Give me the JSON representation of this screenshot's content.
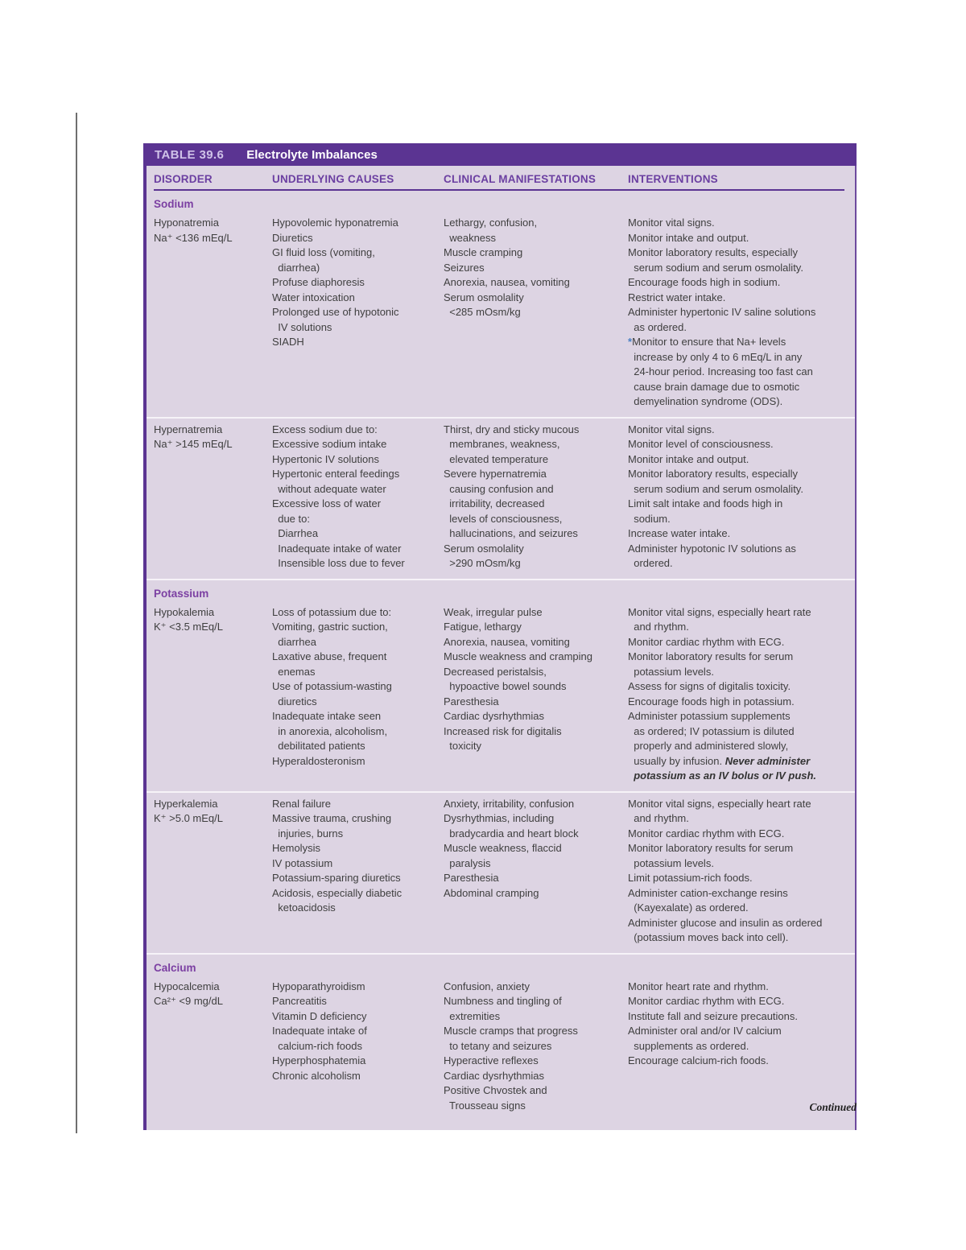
{
  "page": {
    "continued_label": "Continued"
  },
  "colors": {
    "title_bar_bg": "#5b3492",
    "table_body_bg": "#ddd4e3",
    "heading_purple": "#6b3fa1",
    "body_text": "#3f3f3f",
    "footnote_star_blue": "#4a80c4"
  },
  "table": {
    "title_label": "TABLE 39.6",
    "title_text": "Electrolyte Imbalances",
    "columns": [
      "DISORDER",
      "UNDERLYING CAUSES",
      "CLINICAL MANIFESTATIONS",
      "INTERVENTIONS"
    ],
    "sections": [
      {
        "key": "sodium",
        "name": "Sodium",
        "rows": [
          {
            "key": "hyponatremia",
            "disorder": [
              "Hyponatremia",
              "Na⁺ <136 mEq/L"
            ],
            "causes": [
              "Hypovolemic hyponatremia",
              "Diuretics",
              "GI fluid loss (vomiting,",
              "  diarrhea)",
              "Profuse diaphoresis",
              "Water intoxication",
              "Prolonged use of hypotonic",
              "  IV solutions",
              "SIADH"
            ],
            "manifestations": [
              "Lethargy, confusion,",
              "  weakness",
              "Muscle cramping",
              "Seizures",
              "Anorexia, nausea, vomiting",
              "Serum osmolality",
              "  <285 mOsm/kg"
            ],
            "interventions": [
              "Monitor vital signs.",
              "Monitor intake and output.",
              "Monitor laboratory results, especially",
              "  serum sodium and serum osmolality.",
              "Encourage foods high in sodium.",
              "Restrict water intake.",
              "Administer hypertonic IV saline solutions",
              "  as ordered.",
              {
                "star": true,
                "s": "Monitor to ensure that Na+ levels"
              },
              "  increase by only 4 to 6 mEq/L in any",
              "  24-hour period. Increasing too fast can",
              "  cause brain damage due to osmotic",
              "  demyelination syndrome (ODS)."
            ]
          },
          {
            "key": "hypernatremia",
            "disorder": [
              "Hypernatremia",
              "Na⁺ >145 mEq/L"
            ],
            "causes": [
              "Excess sodium due to:",
              "Excessive sodium intake",
              "Hypertonic IV solutions",
              "Hypertonic enteral feedings",
              "  without adequate water",
              "Excessive loss of water",
              "  due to:",
              "  Diarrhea",
              "  Inadequate intake of water",
              "  Insensible loss due to fever"
            ],
            "manifestations": [
              "Thirst, dry and sticky mucous",
              "  membranes, weakness,",
              "  elevated temperature",
              "Severe hypernatremia",
              "  causing confusion and",
              "  irritability, decreased",
              "  levels of consciousness,",
              "  hallucinations, and seizures",
              "Serum osmolality",
              "  >290 mOsm/kg"
            ],
            "interventions": [
              "Monitor vital signs.",
              "Monitor level of consciousness.",
              "Monitor intake and output.",
              "Monitor laboratory results, especially",
              "  serum sodium and serum osmolality.",
              "Limit salt intake and foods high in",
              "  sodium.",
              "Increase water intake.",
              "Administer hypotonic IV solutions as",
              "  ordered."
            ]
          }
        ]
      },
      {
        "key": "potassium",
        "name": "Potassium",
        "rows": [
          {
            "key": "hypokalemia",
            "disorder": [
              "Hypokalemia",
              "K⁺ <3.5 mEq/L"
            ],
            "causes": [
              "Loss of potassium due to:",
              "Vomiting, gastric suction,",
              "  diarrhea",
              "Laxative abuse, frequent",
              "  enemas",
              "Use of potassium-wasting",
              "  diuretics",
              "Inadequate intake seen",
              "  in anorexia, alcoholism,",
              "  debilitated patients",
              "Hyperaldosteronism"
            ],
            "manifestations": [
              "Weak, irregular pulse",
              "Fatigue, lethargy",
              "Anorexia, nausea, vomiting",
              "Muscle weakness and cramping",
              "Decreased peristalsis,",
              "  hypoactive bowel sounds",
              "Paresthesia",
              "Cardiac dysrhythmias",
              "Increased risk for digitalis",
              "  toxicity"
            ],
            "interventions": [
              "Monitor vital signs, especially heart rate",
              "  and rhythm.",
              "Monitor cardiac rhythm with ECG.",
              "Monitor laboratory results for serum",
              "  potassium levels.",
              "Assess for signs of digitalis toxicity.",
              "Encourage foods high in potassium.",
              "Administer potassium supplements",
              "  as ordered; IV potassium is diluted",
              "  properly and administered slowly,",
              {
                "s": "  usually by infusion. ",
                "em": "Never administer"
              },
              {
                "em": "  potassium as an IV bolus or IV push."
              }
            ]
          },
          {
            "key": "hyperkalemia",
            "disorder": [
              "Hyperkalemia",
              "K⁺ >5.0 mEq/L"
            ],
            "causes": [
              "Renal failure",
              "Massive trauma, crushing",
              "  injuries, burns",
              "Hemolysis",
              "IV potassium",
              "Potassium-sparing diuretics",
              "Acidosis, especially diabetic",
              "  ketoacidosis"
            ],
            "manifestations": [
              "Anxiety, irritability, confusion",
              "Dysrhythmias, including",
              "  bradycardia and heart block",
              "Muscle weakness, flaccid",
              "  paralysis",
              "Paresthesia",
              "Abdominal cramping"
            ],
            "interventions": [
              "Monitor vital signs, especially heart rate",
              "  and rhythm.",
              "Monitor cardiac rhythm with ECG.",
              "Monitor laboratory results for serum",
              "  potassium levels.",
              "Limit potassium-rich foods.",
              "Administer cation-exchange resins",
              "  (Kayexalate) as ordered.",
              "Administer glucose and insulin as ordered",
              "  (potassium moves back into cell)."
            ]
          }
        ]
      },
      {
        "key": "calcium",
        "name": "Calcium",
        "rows": [
          {
            "key": "hypocalcemia",
            "disorder": [
              "Hypocalcemia",
              "Ca²⁺ <9 mg/dL"
            ],
            "causes": [
              "Hypoparathyroidism",
              "Pancreatitis",
              "Vitamin D deficiency",
              "Inadequate intake of",
              "  calcium-rich foods",
              "Hyperphosphatemia",
              "Chronic alcoholism"
            ],
            "manifestations": [
              "Confusion, anxiety",
              "Numbness and tingling of",
              "  extremities",
              "Muscle cramps that progress",
              "  to tetany and seizures",
              "Hyperactive reflexes",
              "Cardiac dysrhythmias",
              "Positive Chvostek and",
              "  Trousseau signs"
            ],
            "interventions": [
              "Monitor heart rate and rhythm.",
              "Monitor cardiac rhythm with ECG.",
              "Institute fall and seizure precautions.",
              "Administer oral and/or IV calcium",
              "  supplements as ordered.",
              "Encourage calcium-rich foods."
            ]
          }
        ]
      }
    ]
  }
}
